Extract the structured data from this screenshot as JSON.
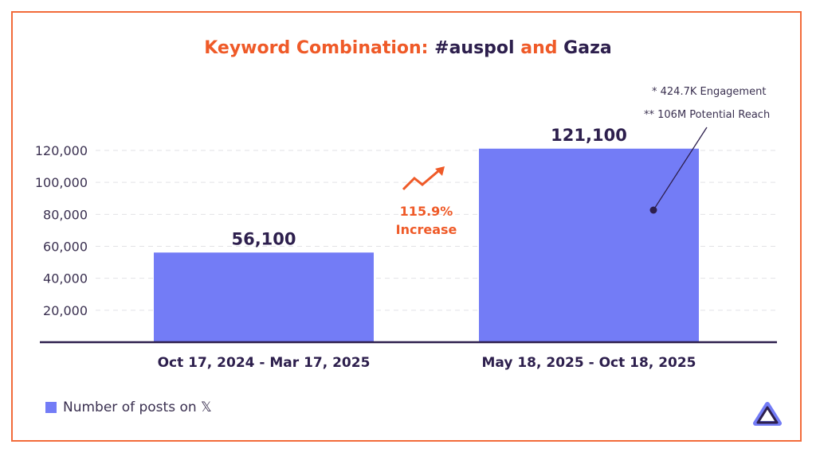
{
  "chart_data": {
    "type": "bar",
    "title_parts": [
      {
        "text": "Keyword Combination: ",
        "color": "#ef5a28"
      },
      {
        "text": "#auspol",
        "color": "#2d1f4d"
      },
      {
        "text": " and ",
        "color": "#ef5a28"
      },
      {
        "text": "Gaza",
        "color": "#2d1f4d"
      }
    ],
    "categories": [
      "Oct 17, 2024 - Mar 17, 2025",
      "May 18, 2025 - Oct 18, 2025"
    ],
    "values": [
      56100,
      121100
    ],
    "data_labels": [
      "56,100",
      "121,100"
    ],
    "yticks": [
      20000,
      40000,
      60000,
      80000,
      100000,
      120000
    ],
    "ytick_labels": [
      "20,000",
      "40,000",
      "60,000",
      "80,000",
      "100,000",
      "120,000"
    ],
    "ylim": [
      0,
      120000
    ],
    "grid": true,
    "series": [
      {
        "name": "Number of posts on 𝕏",
        "values": [
          56100,
          121100
        ]
      }
    ],
    "legend": "bottom-left",
    "bar_color": "#737cf6",
    "annotations": {
      "increase_pct": "115.9%",
      "increase_label": "Increase",
      "note1": "* 424.7K Engagement",
      "note2": "** 106M Potential Reach"
    }
  }
}
